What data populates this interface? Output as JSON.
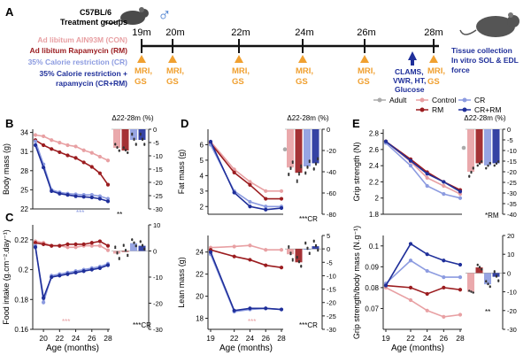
{
  "panel_labels": {
    "a": "A",
    "b": "B",
    "c": "C",
    "d": "D",
    "e": "E"
  },
  "header": {
    "strain": "C57BL/6",
    "groups_title": "Treatment groups",
    "sex_symbol": "♂",
    "groups": [
      {
        "label": "Ad libitum AIN93M (CON)",
        "color": "#e8a0a3"
      },
      {
        "label": "Ad libitum Rapamycin (RM)",
        "color": "#9b1c1f"
      },
      {
        "label": "35% Calorie restriction (CR)",
        "color": "#8c9be0"
      },
      {
        "label": "35% Calorie restriction +",
        "color": "#1f2f9a"
      },
      {
        "label": "rapamycin (CR+RM)",
        "color": "#1f2f9a"
      }
    ],
    "timepoints": [
      "19m",
      "20m",
      "22m",
      "24m",
      "26m",
      "28m"
    ],
    "events": [
      "MRI,",
      "GS",
      "CLAMS,",
      "VWR, HT,",
      "Glucose"
    ],
    "end_note": [
      "Tissue collection",
      "In vitro SOL & EDL",
      "force"
    ]
  },
  "legend": {
    "adult": "Adult",
    "control": "Control",
    "rm": "RM",
    "cr": "CR",
    "crrm": "CR+RM"
  },
  "colors": {
    "con": "#e8a0a3",
    "rm": "#9b1c1f",
    "cr": "#8c9be0",
    "crrm": "#1f2f9a",
    "adult": "#aaaaaa",
    "axis": "#222222",
    "orange": "#f0a030"
  },
  "common": {
    "delta_label": "Δ22-28m (%)",
    "xlabel": "Age (months)",
    "sig_cr": "***CR",
    "sig_rm": "*RM",
    "sig_ns": "**",
    "sig_3": "***"
  },
  "chart_data": [
    {
      "id": "B",
      "type": "line",
      "title": "",
      "xlabel": "",
      "ylabel": "Body mass (g)",
      "x": [
        19,
        20,
        21,
        22,
        23,
        24,
        25,
        26,
        27,
        28
      ],
      "ylim": [
        22,
        34.5
      ],
      "yticks": [
        22,
        25,
        28,
        31,
        34
      ],
      "series": [
        {
          "name": "Control",
          "values": [
            33.6,
            33.4,
            32.8,
            32.4,
            32.0,
            31.8,
            31.2,
            30.8,
            30.2,
            29.6
          ]
        },
        {
          "name": "RM",
          "values": [
            32.8,
            32.0,
            31.4,
            30.9,
            30.4,
            30.0,
            29.3,
            28.6,
            27.6,
            25.8
          ]
        },
        {
          "name": "CR",
          "values": [
            32.6,
            29.0,
            25.0,
            24.6,
            24.4,
            24.3,
            24.2,
            24.2,
            24.0,
            23.6
          ]
        },
        {
          "name": "CR+RM",
          "values": [
            32.0,
            28.5,
            24.8,
            24.4,
            24.2,
            24.0,
            23.9,
            23.8,
            23.6,
            23.2
          ]
        }
      ],
      "delta_axis": {
        "ylim": [
          -30,
          0
        ],
        "yticks": [
          0,
          -5,
          -10,
          -15,
          -20,
          -25,
          -30
        ],
        "values": [
          -7,
          -8,
          -4,
          -4
        ]
      }
    },
    {
      "id": "C",
      "type": "line",
      "title": "",
      "xlabel": "Age (months)",
      "ylabel": "Food intake (g.cm⁻².day⁻¹)",
      "x": [
        19,
        20,
        21,
        22,
        23,
        24,
        25,
        26,
        27,
        28
      ],
      "ylim": [
        0.16,
        0.23
      ],
      "yticks": [
        0.16,
        0.18,
        0.2,
        0.22
      ],
      "series": [
        {
          "name": "Control",
          "values": [
            0.219,
            0.218,
            0.216,
            0.216,
            0.215,
            0.215,
            0.216,
            0.216,
            0.216,
            0.213
          ]
        },
        {
          "name": "RM",
          "values": [
            0.218,
            0.217,
            0.216,
            0.216,
            0.217,
            0.217,
            0.217,
            0.218,
            0.219,
            0.216
          ]
        },
        {
          "name": "CR",
          "values": [
            0.216,
            0.178,
            0.196,
            0.197,
            0.198,
            0.199,
            0.2,
            0.201,
            0.202,
            0.204
          ]
        },
        {
          "name": "CR+RM",
          "values": [
            0.215,
            0.181,
            0.195,
            0.196,
            0.197,
            0.198,
            0.199,
            0.2,
            0.201,
            0.203
          ]
        }
      ],
      "delta_axis": {
        "ylim": [
          -30,
          10
        ],
        "yticks": [
          10,
          0,
          -10,
          -20,
          -30
        ],
        "values": [
          -1,
          0,
          3,
          2
        ]
      }
    },
    {
      "id": "D-top",
      "type": "line",
      "title": "",
      "xlabel": "",
      "ylabel": "Fat mass (g)",
      "x": [
        19,
        22,
        24,
        26,
        28
      ],
      "ylim": [
        1.5,
        7
      ],
      "yticks": [
        2,
        3,
        4,
        5,
        6
      ],
      "series": [
        {
          "name": "Control",
          "values": [
            6.2,
            4.4,
            3.6,
            3.0,
            3.0
          ]
        },
        {
          "name": "RM",
          "values": [
            6.1,
            4.2,
            3.4,
            2.5,
            2.5
          ]
        },
        {
          "name": "CR",
          "values": [
            6.0,
            3.0,
            2.3,
            2.0,
            2.0
          ]
        },
        {
          "name": "CR+RM",
          "values": [
            6.2,
            2.9,
            2.0,
            1.8,
            1.9
          ]
        }
      ],
      "adult": {
        "x": 28,
        "value": 5.7
      },
      "delta_axis": {
        "ylim": [
          -80,
          0
        ],
        "yticks": [
          0,
          -20,
          -40,
          -60,
          -80
        ],
        "values": [
          -36,
          -41,
          -35,
          -32
        ]
      }
    },
    {
      "id": "D-bottom",
      "type": "line",
      "title": "",
      "xlabel": "Age (months)",
      "ylabel": "Lean mass (g)",
      "x": [
        19,
        22,
        24,
        26,
        28
      ],
      "ylim": [
        17,
        25.5
      ],
      "yticks": [
        18,
        20,
        22,
        24
      ],
      "series": [
        {
          "name": "Control",
          "values": [
            24.4,
            24.5,
            24.6,
            24.2,
            24.2
          ]
        },
        {
          "name": "RM",
          "values": [
            24.2,
            23.6,
            23.3,
            22.8,
            22.6
          ]
        },
        {
          "name": "CR",
          "values": [
            23.8,
            18.6,
            18.8,
            18.9,
            18.8
          ]
        },
        {
          "name": "CR+RM",
          "values": [
            24.0,
            18.7,
            18.9,
            18.9,
            18.8
          ]
        }
      ],
      "delta_axis": {
        "ylim": [
          -30,
          5
        ],
        "yticks": [
          5,
          0,
          -5,
          -10,
          -15,
          -20,
          -25,
          -30
        ],
        "values": [
          -2,
          -5,
          0,
          1
        ]
      }
    },
    {
      "id": "E-top",
      "type": "line",
      "title": "",
      "xlabel": "",
      "ylabel": "Grip strength (N)",
      "x": [
        19,
        22,
        24,
        26,
        28
      ],
      "ylim": [
        1.8,
        2.85
      ],
      "yticks": [
        1.8,
        2.0,
        2.2,
        2.4,
        2.6,
        2.8
      ],
      "series": [
        {
          "name": "Control",
          "values": [
            2.7,
            2.45,
            2.25,
            2.15,
            2.05
          ]
        },
        {
          "name": "RM",
          "values": [
            2.7,
            2.48,
            2.32,
            2.2,
            2.1
          ]
        },
        {
          "name": "CR",
          "values": [
            2.68,
            2.4,
            2.15,
            2.05,
            2.0
          ]
        },
        {
          "name": "CR+RM",
          "values": [
            2.7,
            2.46,
            2.3,
            2.2,
            2.08
          ]
        }
      ],
      "adult": {
        "x": 28,
        "value": 2.62
      },
      "delta_axis": {
        "ylim": [
          -40,
          0
        ],
        "yticks": [
          0,
          -5,
          -10,
          -15,
          -20,
          -25,
          -30,
          -35,
          -40
        ],
        "values": [
          -20,
          -16,
          -17,
          -16
        ]
      }
    },
    {
      "id": "E-bottom",
      "type": "line",
      "title": "",
      "xlabel": "Age (months)",
      "ylabel": "Grip strength/body mass (N.g⁻¹)",
      "x": [
        19,
        22,
        24,
        26,
        28
      ],
      "ylim": [
        0.06,
        0.105
      ],
      "yticks": [
        0.07,
        0.08,
        0.09,
        0.1
      ],
      "series": [
        {
          "name": "Control",
          "values": [
            0.08,
            0.074,
            0.069,
            0.066,
            0.067
          ]
        },
        {
          "name": "RM",
          "values": [
            0.081,
            0.08,
            0.077,
            0.08,
            0.079
          ]
        },
        {
          "name": "CR",
          "values": [
            0.082,
            0.093,
            0.088,
            0.085,
            0.085
          ]
        },
        {
          "name": "CR+RM",
          "values": [
            0.081,
            0.101,
            0.096,
            0.093,
            0.091
          ]
        }
      ],
      "delta_axis": {
        "ylim": [
          -30,
          20
        ],
        "yticks": [
          20,
          10,
          0,
          -10,
          -20,
          -30
        ],
        "values": [
          -10,
          3,
          -6,
          -2
        ]
      }
    }
  ]
}
